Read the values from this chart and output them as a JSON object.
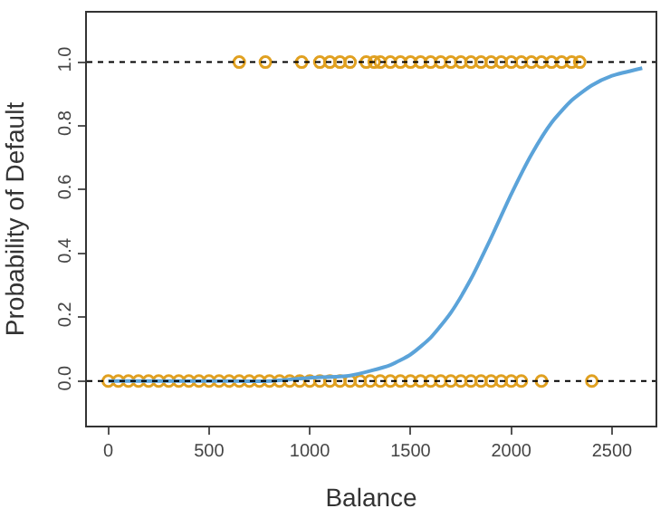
{
  "chart_data": {
    "type": "line",
    "xlabel": "Balance",
    "ylabel": "Probability of Default",
    "xlim": [
      -106,
      2716
    ],
    "ylim": [
      -0.14,
      1.155
    ],
    "xticks": [
      0,
      500,
      1000,
      1500,
      2000,
      2500
    ],
    "yticks": [
      {
        "value": 0,
        "label": "0.0"
      },
      {
        "value": 0.2,
        "label": "0.2"
      },
      {
        "value": 0.4,
        "label": "0.4"
      },
      {
        "value": 0.6,
        "label": "0.6"
      },
      {
        "value": 0.8,
        "label": "0.8"
      },
      {
        "value": 1,
        "label": "1.0"
      }
    ],
    "ref_lines": [
      {
        "axis": "y",
        "value": 0,
        "label": null,
        "color": "#000000",
        "line_style": "dotted"
      },
      {
        "axis": "y",
        "value": 1,
        "label": null,
        "color": "#000000",
        "line_style": "dotted"
      }
    ],
    "series": [
      {
        "type": "scatter",
        "marker": "circle",
        "color": "#e0a020",
        "x": [
          0,
          50,
          100,
          150,
          200,
          250,
          300,
          350,
          400,
          450,
          500,
          550,
          600,
          650,
          700,
          750,
          800,
          850,
          900,
          950,
          1000,
          1050,
          1100,
          1150,
          1200,
          1250,
          1300,
          1350,
          1400,
          1450,
          1500,
          1550,
          1600,
          1650,
          1700,
          1750,
          1800,
          1850,
          1900,
          1950,
          2000,
          2050,
          2150,
          2400
        ],
        "values": [
          0,
          0,
          0,
          0,
          0,
          0,
          0,
          0,
          0,
          0,
          0,
          0,
          0,
          0,
          0,
          0,
          0,
          0,
          0,
          0,
          0,
          0,
          0,
          0,
          0,
          0,
          0,
          0,
          0,
          0,
          0,
          0,
          0,
          0,
          0,
          0,
          0,
          0,
          0,
          0,
          0,
          0,
          0,
          0
        ]
      },
      {
        "type": "scatter",
        "marker": "circle",
        "color": "#e0a020",
        "x": [
          650,
          780,
          960,
          1050,
          1100,
          1150,
          1200,
          1280,
          1320,
          1350,
          1400,
          1450,
          1500,
          1550,
          1600,
          1650,
          1700,
          1750,
          1800,
          1850,
          1900,
          1950,
          2000,
          2050,
          2100,
          2150,
          2200,
          2250,
          2300,
          2340
        ],
        "values": [
          1,
          1,
          1,
          1,
          1,
          1,
          1,
          1,
          1,
          1,
          1,
          1,
          1,
          1,
          1,
          1,
          1,
          1,
          1,
          1,
          1,
          1,
          1,
          1,
          1,
          1,
          1,
          1,
          1,
          1
        ]
      },
      {
        "marker": "none",
        "line_style": "solid",
        "color": "#5ba3d9",
        "x": [
          0,
          500,
          800,
          1000,
          1200,
          1400,
          1500,
          1600,
          1700,
          1800,
          1900,
          2000,
          2100,
          2200,
          2300,
          2400,
          2500,
          2650
        ],
        "values": [
          0.0,
          0.0,
          0.0,
          0.01,
          0.017,
          0.05,
          0.083,
          0.136,
          0.214,
          0.32,
          0.449,
          0.586,
          0.71,
          0.81,
          0.88,
          0.927,
          0.957,
          0.981
        ]
      }
    ]
  }
}
